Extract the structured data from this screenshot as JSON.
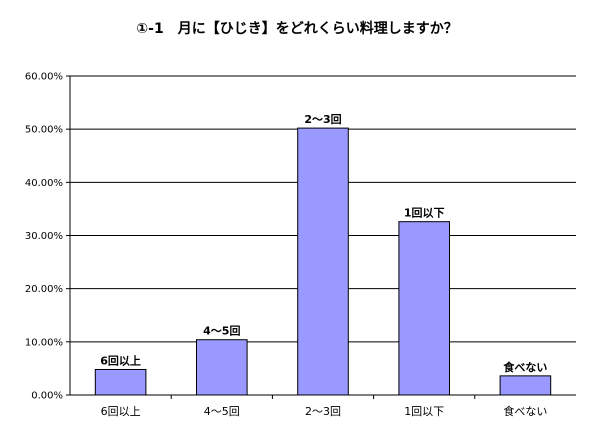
{
  "chart_data": {
    "type": "bar",
    "title": "①-1　月に【ひじき】をどれくらい料理しますか？",
    "xlabel": "",
    "ylabel": "",
    "categories": [
      "6回以上",
      "4～5回",
      "2～3回",
      "1回以下",
      "食べない"
    ],
    "values": [
      4.8,
      10.4,
      50.2,
      32.6,
      3.6
    ],
    "data_labels": [
      "6回以上",
      "4～5回",
      "2～3回",
      "1回以下",
      "食べない"
    ],
    "ylim": [
      0,
      60
    ],
    "yticks": [
      0,
      10,
      20,
      30,
      40,
      50,
      60
    ],
    "ytick_labels": [
      "0.00%",
      "10.00%",
      "20.00%",
      "30.00%",
      "40.00%",
      "50.00%",
      "60.00%"
    ],
    "grid": true,
    "legend": "none",
    "colors": {
      "bar_fill": "#9999ff",
      "bar_stroke": "#000000",
      "grid": "#000000"
    }
  }
}
